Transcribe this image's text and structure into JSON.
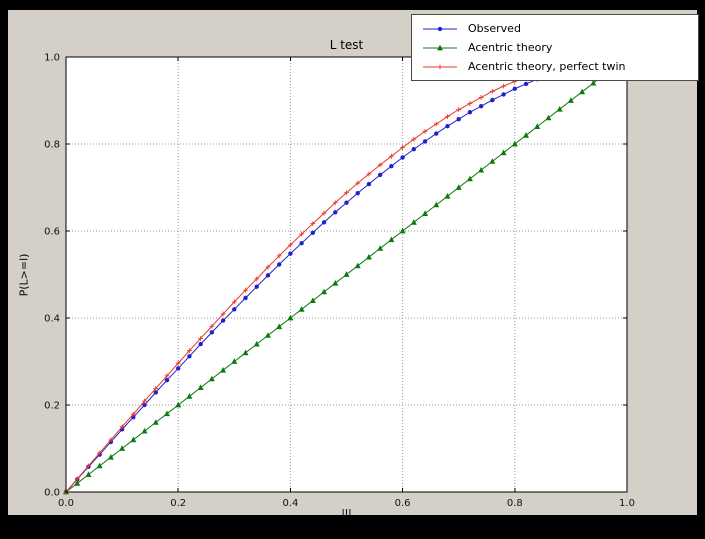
{
  "figure": {
    "background_color": "#d4d0c8",
    "outer_background_color": "#000000",
    "axes_background_color": "#ffffff"
  },
  "chart_data": {
    "type": "line",
    "title": "L test",
    "xlabel": "|l|",
    "ylabel": "P(L>=l)",
    "xlim": [
      0,
      1
    ],
    "ylim": [
      0,
      1
    ],
    "grid": true,
    "grid_style": "dotted",
    "legend_position": "upper right",
    "x_ticks": [
      0,
      0.2,
      0.4,
      0.6,
      0.8,
      1
    ],
    "x_tick_labels": [
      "0.0",
      "0.2",
      "0.4",
      "0.6",
      "0.8",
      "1.0"
    ],
    "y_ticks": [
      0,
      0.2,
      0.4,
      0.6,
      0.8,
      1
    ],
    "y_tick_labels": [
      "0.0",
      "0.2",
      "0.4",
      "0.6",
      "0.8",
      "1.0"
    ],
    "series": [
      {
        "name": "Observed",
        "color": "#2222cc",
        "marker": "circle",
        "x": [
          0,
          0.02,
          0.04,
          0.06,
          0.08,
          0.1,
          0.12,
          0.14,
          0.16,
          0.18,
          0.2,
          0.22,
          0.24,
          0.26,
          0.28,
          0.3,
          0.32,
          0.34,
          0.36,
          0.38,
          0.4,
          0.42,
          0.44,
          0.46,
          0.48,
          0.5,
          0.52,
          0.54,
          0.56,
          0.58,
          0.6,
          0.62,
          0.64,
          0.66,
          0.68,
          0.7,
          0.72,
          0.74,
          0.76,
          0.78,
          0.8,
          0.82,
          0.84,
          0.86
        ],
        "y": [
          0,
          0.029,
          0.058,
          0.086,
          0.115,
          0.144,
          0.172,
          0.2,
          0.229,
          0.257,
          0.284,
          0.312,
          0.34,
          0.367,
          0.394,
          0.42,
          0.446,
          0.472,
          0.498,
          0.523,
          0.548,
          0.572,
          0.596,
          0.62,
          0.643,
          0.665,
          0.687,
          0.708,
          0.729,
          0.749,
          0.769,
          0.788,
          0.806,
          0.824,
          0.841,
          0.857,
          0.873,
          0.887,
          0.901,
          0.914,
          0.927,
          0.938,
          0.949,
          0.958
        ]
      },
      {
        "name": "Acentric theory",
        "color": "#0d7a0d",
        "marker": "triangle",
        "x": [
          0,
          0.02,
          0.04,
          0.06,
          0.08,
          0.1,
          0.12,
          0.14,
          0.16,
          0.18,
          0.2,
          0.22,
          0.24,
          0.26,
          0.28,
          0.3,
          0.32,
          0.34,
          0.36,
          0.38,
          0.4,
          0.42,
          0.44,
          0.46,
          0.48,
          0.5,
          0.52,
          0.54,
          0.56,
          0.58,
          0.6,
          0.62,
          0.64,
          0.66,
          0.68,
          0.7,
          0.72,
          0.74,
          0.76,
          0.78,
          0.8,
          0.82,
          0.84,
          0.86,
          0.88,
          0.9,
          0.92,
          0.94,
          0.96
        ],
        "y": [
          0,
          0.02,
          0.04,
          0.06,
          0.08,
          0.1,
          0.12,
          0.14,
          0.16,
          0.18,
          0.2,
          0.22,
          0.24,
          0.26,
          0.28,
          0.3,
          0.32,
          0.34,
          0.36,
          0.38,
          0.4,
          0.42,
          0.44,
          0.46,
          0.48,
          0.5,
          0.52,
          0.54,
          0.56,
          0.58,
          0.6,
          0.62,
          0.64,
          0.66,
          0.68,
          0.7,
          0.72,
          0.74,
          0.76,
          0.78,
          0.8,
          0.82,
          0.84,
          0.86,
          0.88,
          0.9,
          0.92,
          0.94,
          0.96
        ]
      },
      {
        "name": "Acentric theory, perfect twin",
        "color": "#e8392a",
        "marker": "plus",
        "x": [
          0,
          0.02,
          0.04,
          0.06,
          0.08,
          0.1,
          0.12,
          0.14,
          0.16,
          0.18,
          0.2,
          0.22,
          0.24,
          0.26,
          0.28,
          0.3,
          0.32,
          0.34,
          0.36,
          0.38,
          0.4,
          0.42,
          0.44,
          0.46,
          0.48,
          0.5,
          0.52,
          0.54,
          0.56,
          0.58,
          0.6,
          0.62,
          0.64,
          0.66,
          0.68,
          0.7,
          0.72,
          0.74,
          0.76,
          0.78,
          0.8,
          0.82,
          0.84,
          0.86
        ],
        "y": [
          0,
          0.03,
          0.06,
          0.09,
          0.12,
          0.15,
          0.179,
          0.209,
          0.238,
          0.267,
          0.296,
          0.325,
          0.353,
          0.381,
          0.409,
          0.437,
          0.464,
          0.49,
          0.517,
          0.543,
          0.568,
          0.593,
          0.617,
          0.641,
          0.665,
          0.688,
          0.71,
          0.731,
          0.752,
          0.772,
          0.792,
          0.811,
          0.829,
          0.846,
          0.863,
          0.879,
          0.893,
          0.907,
          0.921,
          0.933,
          0.944,
          0.954,
          0.964,
          0.972
        ]
      }
    ]
  }
}
